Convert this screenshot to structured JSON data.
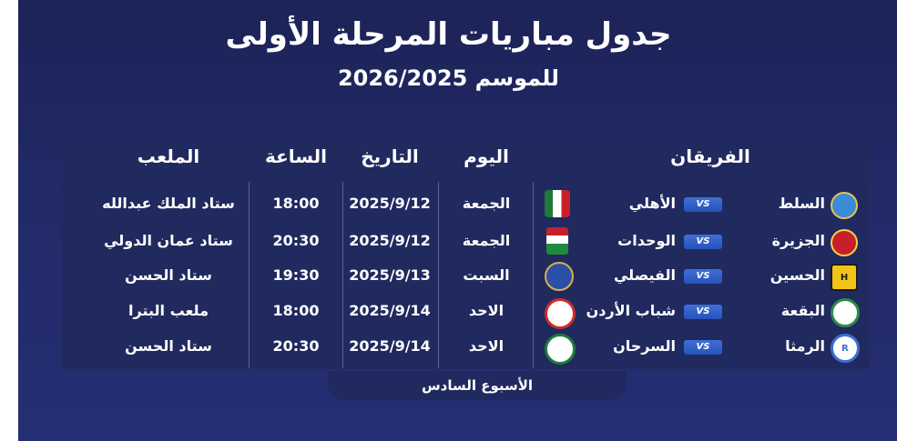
{
  "header": {
    "title": "جدول مباريات المرحلة الأولى",
    "subtitle": "للموسم 2026/2025"
  },
  "columns": {
    "teams": "الفريقان",
    "day": "اليوم",
    "date": "التاريخ",
    "time": "الساعة",
    "stadium": "الملعب"
  },
  "vs_label": "VS",
  "matches": [
    {
      "home": "السلط",
      "away": "الأهلي",
      "day": "الجمعة",
      "date": "2025/9/12",
      "time": "18:00",
      "stadium": "ستاد الملك عبدالله",
      "home_logo_color": "#3a8bd8",
      "away_logo_color": "#1f7a3a"
    },
    {
      "home": "الجزيرة",
      "away": "الوحدات",
      "day": "الجمعة",
      "date": "2025/9/12",
      "time": "20:30",
      "stadium": "ستاد عمان الدولي",
      "home_logo_color": "#c8202a",
      "away_logo_color": "#1f8a3d"
    },
    {
      "home": "الحسين",
      "away": "الفيصلي",
      "day": "السبت",
      "date": "2025/9/13",
      "time": "19:30",
      "stadium": "ستاد الحسن",
      "home_logo_color": "#f2c318",
      "away_logo_color": "#2a4fa8"
    },
    {
      "home": "البقعة",
      "away": "شباب الأردن",
      "day": "الاحد",
      "date": "2025/9/14",
      "time": "18:00",
      "stadium": "ملعب البترا",
      "home_logo_color": "#2e8b4a",
      "away_logo_color": "#d02a2a"
    },
    {
      "home": "الرمثا",
      "away": "السرحان",
      "day": "الاحد",
      "date": "2025/9/14",
      "time": "20:30",
      "stadium": "ستاد الحسن",
      "home_logo_color": "#3b6fd0",
      "away_logo_color": "#1d7d3c"
    }
  ],
  "footer": {
    "week_label": "الأسبوع السادس"
  }
}
